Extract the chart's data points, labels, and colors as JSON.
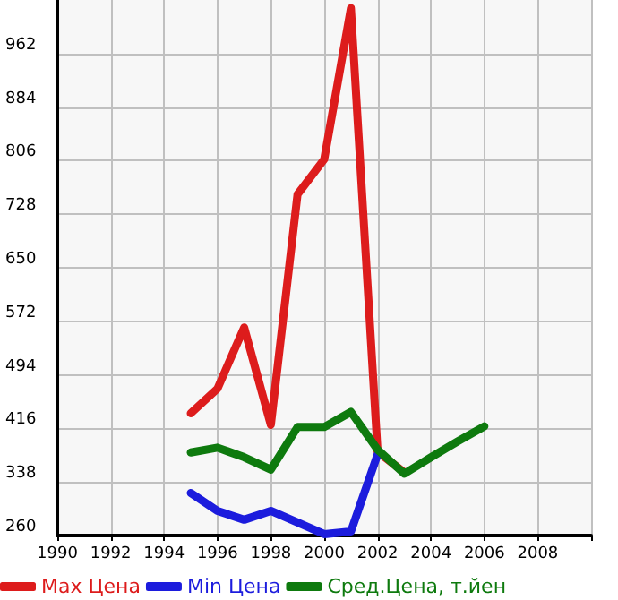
{
  "chart_data": {
    "type": "line",
    "x": [
      1995,
      1996,
      1997,
      1998,
      1999,
      2000,
      2001,
      2002,
      2003,
      2004,
      2005,
      2006
    ],
    "series": [
      {
        "name": "Max Цена",
        "color": "#dd1c1c",
        "values": [
          438,
          474,
          563,
          421,
          757,
          808,
          1028,
          382,
          352,
          null,
          null,
          null
        ]
      },
      {
        "name": "Min Цена",
        "color": "#1c1cdd",
        "values": [
          322,
          296,
          283,
          296,
          279,
          262,
          266,
          378,
          null,
          null,
          null,
          null
        ]
      },
      {
        "name": "Сред.Цена, т.йен",
        "color": "#0e7a0e",
        "values": [
          381,
          388,
          374,
          356,
          418,
          418,
          440,
          385,
          350,
          374,
          397,
          419
        ]
      }
    ],
    "xlim": [
      1990,
      2010
    ],
    "xticks": [
      1990,
      1992,
      1994,
      1996,
      1998,
      2000,
      2002,
      2004,
      2006,
      2008,
      {
        "value": 2010,
        "label": null
      }
    ],
    "ylim": [
      260,
      1040
    ],
    "yticks": [
      260,
      338,
      416,
      494,
      572,
      650,
      728,
      806,
      884,
      962
    ],
    "grid": true,
    "legend": "bottom",
    "marker": "none",
    "line_style": "solid"
  }
}
